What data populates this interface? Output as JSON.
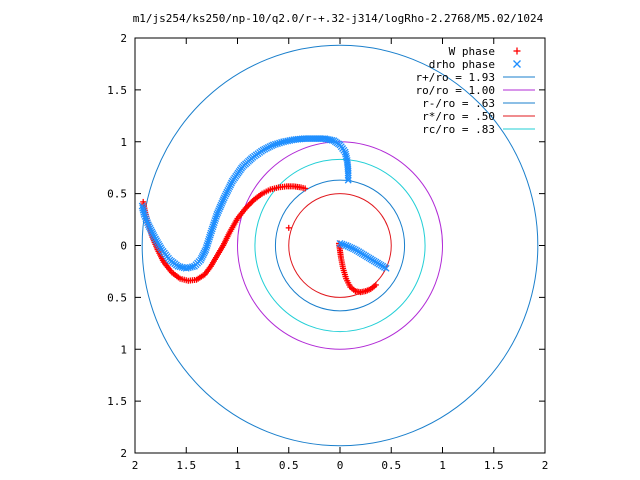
{
  "chart_data": {
    "type": "scatter",
    "title": "m1/js254/ks250/np-10/q2.0/r-+.32-j314/logRho-2.2768/M5.02/1024",
    "xlabel": "",
    "ylabel": "",
    "xlim": [
      -2,
      2
    ],
    "ylim": [
      -2,
      2
    ],
    "x_ticks": [
      {
        "value": -2,
        "label": "2"
      },
      {
        "value": -1.5,
        "label": "1.5"
      },
      {
        "value": -1,
        "label": "1"
      },
      {
        "value": -0.5,
        "label": "0.5"
      },
      {
        "value": 0,
        "label": "0"
      },
      {
        "value": 0.5,
        "label": "0.5"
      },
      {
        "value": 1,
        "label": "1"
      },
      {
        "value": 1.5,
        "label": "1.5"
      },
      {
        "value": 2,
        "label": "2"
      }
    ],
    "y_ticks": [
      {
        "value": 2,
        "label": "2"
      },
      {
        "value": 1.5,
        "label": "1.5"
      },
      {
        "value": 1,
        "label": "1"
      },
      {
        "value": 0.5,
        "label": "0.5"
      },
      {
        "value": 0,
        "label": "0"
      },
      {
        "value": -0.5,
        "label": "0.5"
      },
      {
        "value": -1,
        "label": "1"
      },
      {
        "value": -1.5,
        "label": "1.5"
      },
      {
        "value": -2,
        "label": "2"
      }
    ],
    "grid": false,
    "legend_position": "top-right",
    "series": [
      {
        "name": "W phase",
        "marker": "plus",
        "color": "#ff0000",
        "points": [
          [
            0.35,
            -0.38
          ],
          [
            0.3,
            -0.42
          ],
          [
            0.25,
            -0.44
          ],
          [
            0.2,
            -0.45
          ],
          [
            0.15,
            -0.44
          ],
          [
            0.1,
            -0.4
          ],
          [
            0.06,
            -0.32
          ],
          [
            0.03,
            -0.22
          ],
          [
            0.01,
            -0.12
          ],
          [
            0.0,
            -0.05
          ],
          [
            -0.01,
            0.02
          ],
          [
            -0.5,
            0.17
          ],
          [
            -0.34,
            0.55
          ],
          [
            -0.38,
            0.56
          ],
          [
            -0.45,
            0.57
          ],
          [
            -0.52,
            0.57
          ],
          [
            -0.6,
            0.56
          ],
          [
            -0.68,
            0.54
          ],
          [
            -0.76,
            0.5
          ],
          [
            -0.84,
            0.44
          ],
          [
            -0.92,
            0.36
          ],
          [
            -1.0,
            0.26
          ],
          [
            -1.08,
            0.12
          ],
          [
            -1.14,
            0.0
          ],
          [
            -1.2,
            -0.1
          ],
          [
            -1.26,
            -0.2
          ],
          [
            -1.32,
            -0.28
          ],
          [
            -1.4,
            -0.33
          ],
          [
            -1.48,
            -0.34
          ],
          [
            -1.56,
            -0.32
          ],
          [
            -1.64,
            -0.26
          ],
          [
            -1.72,
            -0.16
          ],
          [
            -1.78,
            -0.04
          ],
          [
            -1.83,
            0.08
          ],
          [
            -1.87,
            0.2
          ],
          [
            -1.9,
            0.32
          ],
          [
            -1.92,
            0.42
          ]
        ]
      },
      {
        "name": "drho phase",
        "marker": "cross",
        "color": "#1f8fff",
        "points": [
          [
            0.45,
            -0.22
          ],
          [
            0.35,
            -0.16
          ],
          [
            0.25,
            -0.1
          ],
          [
            0.15,
            -0.04
          ],
          [
            0.06,
            0.0
          ],
          [
            0.0,
            0.02
          ],
          [
            0.08,
            0.63
          ],
          [
            0.08,
            0.72
          ],
          [
            0.07,
            0.82
          ],
          [
            0.05,
            0.9
          ],
          [
            0.0,
            0.97
          ],
          [
            -0.06,
            1.01
          ],
          [
            -0.15,
            1.03
          ],
          [
            -0.25,
            1.03
          ],
          [
            -0.35,
            1.03
          ],
          [
            -0.45,
            1.02
          ],
          [
            -0.55,
            1.0
          ],
          [
            -0.65,
            0.97
          ],
          [
            -0.75,
            0.92
          ],
          [
            -0.85,
            0.85
          ],
          [
            -0.95,
            0.76
          ],
          [
            -1.05,
            0.62
          ],
          [
            -1.13,
            0.46
          ],
          [
            -1.2,
            0.3
          ],
          [
            -1.26,
            0.12
          ],
          [
            -1.31,
            -0.04
          ],
          [
            -1.36,
            -0.14
          ],
          [
            -1.42,
            -0.2
          ],
          [
            -1.5,
            -0.22
          ],
          [
            -1.58,
            -0.2
          ],
          [
            -1.66,
            -0.14
          ],
          [
            -1.74,
            -0.04
          ],
          [
            -1.81,
            0.08
          ],
          [
            -1.87,
            0.2
          ],
          [
            -1.91,
            0.3
          ],
          [
            -1.93,
            0.38
          ]
        ]
      },
      {
        "name": "r+/ro = 1.93",
        "kind": "circle",
        "radius": 1.93,
        "color": "#1a7fcc"
      },
      {
        "name": "ro/ro = 1.00",
        "kind": "circle",
        "radius": 1.0,
        "color": "#b12bd6"
      },
      {
        "name": "r-/ro = .63",
        "kind": "circle",
        "radius": 0.63,
        "color": "#1a7fcc"
      },
      {
        "name": "r*/ro = .50",
        "kind": "circle",
        "radius": 0.5,
        "color": "#e0181e"
      },
      {
        "name": "rc/ro = .83",
        "kind": "circle",
        "radius": 0.83,
        "color": "#22cfd6"
      }
    ]
  }
}
